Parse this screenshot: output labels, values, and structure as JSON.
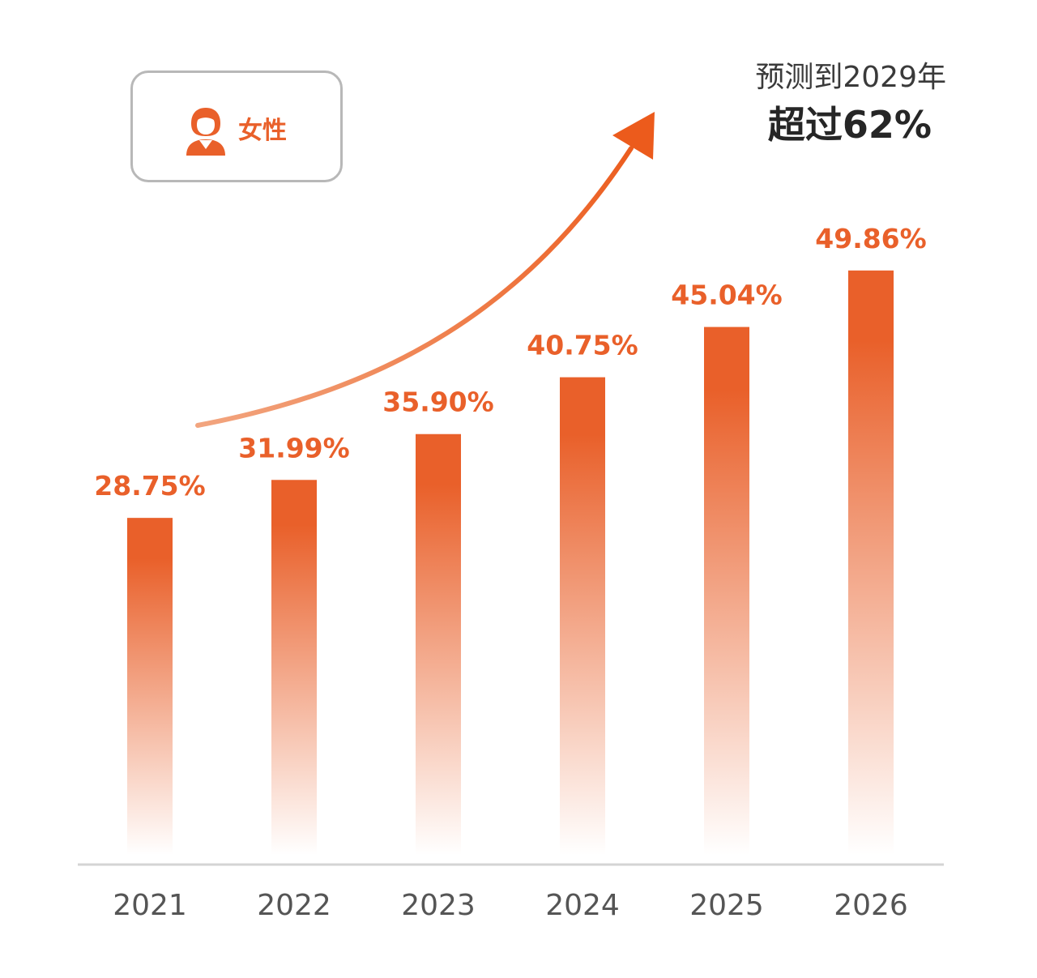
{
  "chart_data": {
    "type": "bar",
    "categories": [
      "2021",
      "2022",
      "2023",
      "2024",
      "2025",
      "2026"
    ],
    "values": [
      28.75,
      31.99,
      35.9,
      40.75,
      45.04,
      49.86
    ],
    "value_labels": [
      "28.75%",
      "31.99%",
      "35.90%",
      "40.75%",
      "45.04%",
      "49.86%"
    ],
    "title": "",
    "xlabel": "",
    "ylabel": "",
    "ylim": [
      0,
      56
    ],
    "grid": false,
    "legend": {
      "label": "女性",
      "icon": "female-user-icon",
      "placement": "top-left"
    },
    "annotation": {
      "line1": "预测到2029年",
      "line2": "超过62%"
    },
    "colors": {
      "bar_top": "#e9602a",
      "bar_bottom": "#ffffff",
      "value_label": "#e9602a",
      "axis": "#d4d4d4",
      "tick_label": "#555555",
      "arrow_start": "#f2a57f",
      "arrow_end": "#ec5b1c"
    }
  }
}
